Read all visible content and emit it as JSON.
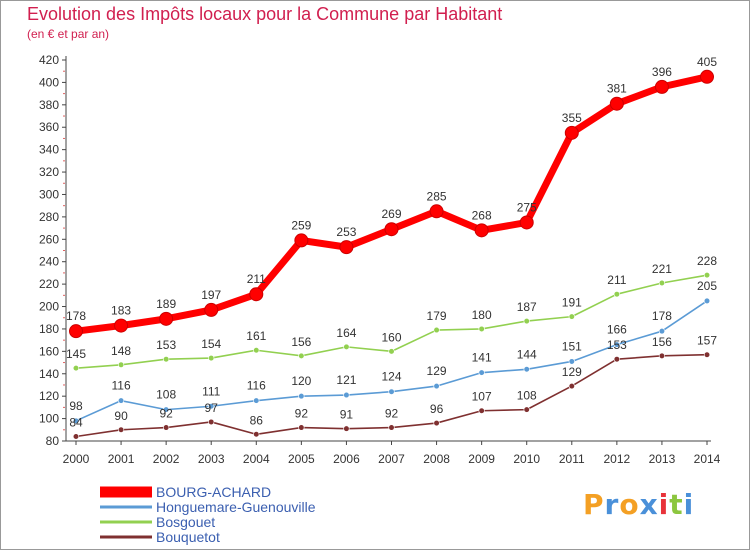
{
  "chart_data": {
    "type": "line",
    "title": "Evolution des Impôts locaux pour la Commune par Habitant",
    "subtitle": "(en € et par an)",
    "x": [
      "2000",
      "2001",
      "2002",
      "2003",
      "2004",
      "2005",
      "2006",
      "2007",
      "2008",
      "2009",
      "2010",
      "2011",
      "2012",
      "2013",
      "2014"
    ],
    "ylim": [
      80,
      420
    ],
    "yticks": [
      80,
      100,
      120,
      140,
      160,
      180,
      200,
      220,
      240,
      260,
      280,
      300,
      320,
      340,
      360,
      380,
      400,
      420
    ],
    "grid": false,
    "legend_position": "bottom-left",
    "series": [
      {
        "name": "BOURG-ACHARD",
        "color": "#ff0000",
        "values": [
          178,
          183,
          189,
          197,
          211,
          259,
          253,
          269,
          285,
          268,
          275,
          355,
          381,
          396,
          405
        ]
      },
      {
        "name": "Honguemare-Guenouville",
        "color": "#5b9bd5",
        "values": [
          98,
          116,
          108,
          111,
          116,
          120,
          121,
          124,
          129,
          141,
          144,
          151,
          166,
          178,
          205
        ]
      },
      {
        "name": "Bosgouet",
        "color": "#92d050",
        "values": [
          145,
          148,
          153,
          154,
          161,
          156,
          164,
          160,
          179,
          180,
          187,
          191,
          211,
          221,
          228
        ]
      },
      {
        "name": "Bouquetot",
        "color": "#7f3030",
        "values": [
          84,
          90,
          92,
          97,
          86,
          92,
          91,
          92,
          96,
          107,
          108,
          129,
          153,
          156,
          157
        ]
      }
    ]
  },
  "logo": {
    "letters": [
      "P",
      "r",
      "o",
      "x",
      "i",
      "t",
      "i"
    ],
    "colors": [
      "#f4a024",
      "#4a90d9",
      "#f4a024",
      "#4a90d9",
      "#e8333a",
      "#8cc63f",
      "#4a90d9"
    ]
  }
}
